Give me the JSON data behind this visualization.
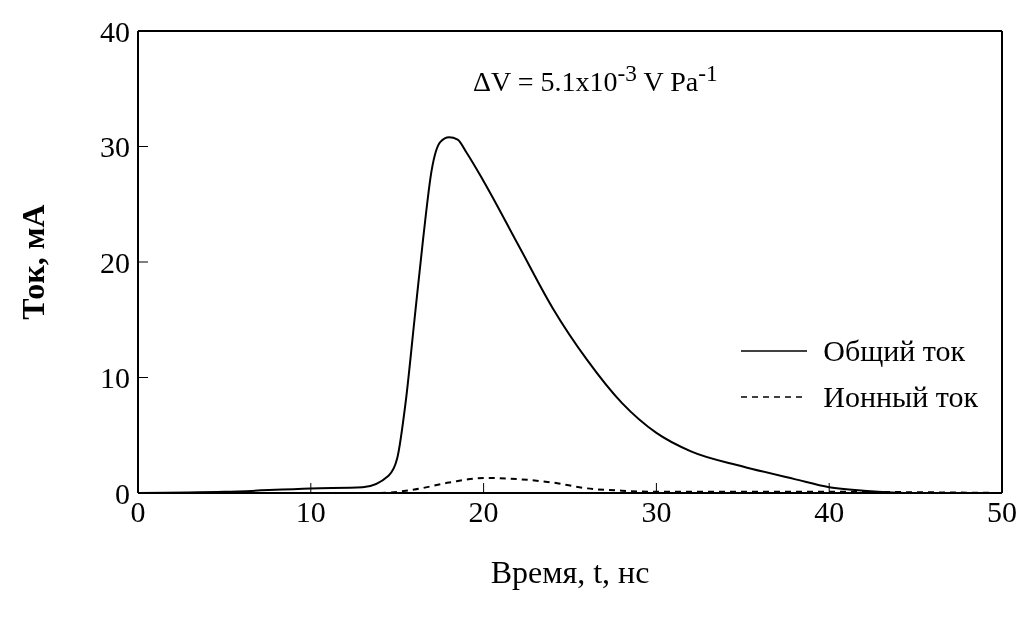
{
  "chart_data": {
    "type": "line",
    "xlabel": "Время, t, нс",
    "ylabel": "Ток, мА",
    "annotations": [
      "ΔV = 5.1x10$^{-3}$ V Pa$^{-1}$"
    ],
    "x": [
      0,
      5,
      10,
      13,
      14.5,
      15,
      15.5,
      16,
      16.5,
      17,
      17.5,
      18,
      18.5,
      19,
      20,
      22,
      24,
      26,
      28,
      30,
      32,
      35,
      38,
      40,
      42,
      45,
      50
    ],
    "series": [
      {
        "name": "Общий ток",
        "color": "#000000",
        "line_style": "solid",
        "values": [
          0,
          0.1,
          0.4,
          0.5,
          1.5,
          3,
          8,
          15,
          22,
          28,
          30.4,
          30.8,
          30.6,
          29.5,
          27,
          21.5,
          16,
          11.5,
          7.8,
          5.2,
          3.6,
          2.3,
          1.2,
          0.5,
          0.2,
          0,
          0
        ]
      },
      {
        "name": "Ионный ток",
        "color": "#000000",
        "line_style": "dashed",
        "x": [
          0,
          14,
          16,
          18,
          20,
          22,
          24,
          26,
          28,
          30,
          40,
          50
        ],
        "values": [
          0,
          0,
          0.3,
          0.9,
          1.3,
          1.2,
          0.9,
          0.4,
          0.2,
          0.1,
          0.1,
          0
        ]
      }
    ],
    "xlim": [
      0,
      50
    ],
    "xticks": [
      0,
      10,
      20,
      30,
      40,
      50
    ],
    "ylim": [
      0,
      40
    ],
    "yticks": [
      0,
      10,
      20,
      30,
      40
    ],
    "grid": false,
    "legend": "right",
    "marker": "none"
  }
}
